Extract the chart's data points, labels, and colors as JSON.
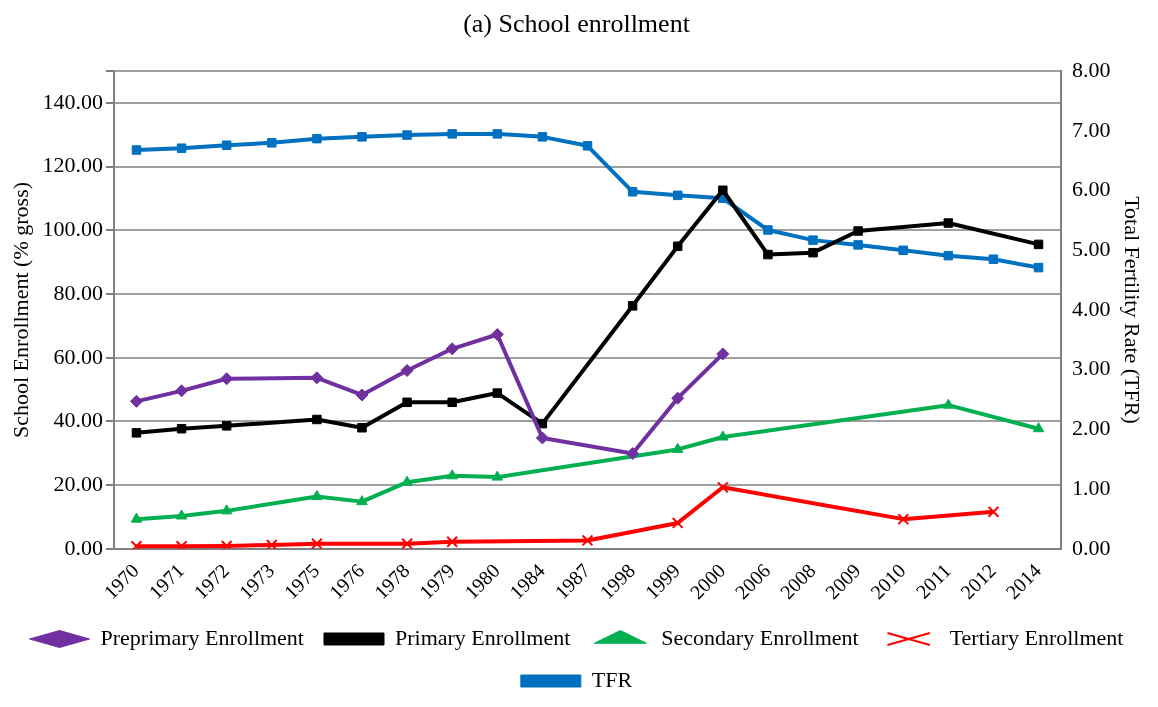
{
  "chart_data": {
    "type": "line",
    "title": "(a) School enrollment",
    "ylabel": "School Enrollment (% gross)",
    "y2label": "Total Fertility Rate (TFR)",
    "categories": [
      "1970",
      "1971",
      "1972",
      "1973",
      "1975",
      "1976",
      "1978",
      "1979",
      "1980",
      "1984",
      "1987",
      "1998",
      "1999",
      "2000",
      "2006",
      "2008",
      "2009",
      "2010",
      "2011",
      "2012",
      "2014"
    ],
    "series": [
      {
        "name": "Preprimary Enrollment",
        "color": "#7030a0",
        "marker": "diamond",
        "values": [
          46.3,
          49.6,
          53.4,
          null,
          53.7,
          48.3,
          56,
          62.8,
          67.3,
          34.8,
          null,
          29.9,
          47.3,
          61.2,
          null,
          null,
          null,
          null,
          null,
          null,
          null
        ]
      },
      {
        "name": "Primary Enrollment",
        "color": "#000000",
        "marker": "square",
        "values": [
          36.4,
          37.7,
          38.6,
          null,
          40.6,
          38,
          46,
          46,
          48.9,
          39.3,
          null,
          76.3,
          95,
          112.6,
          92.4,
          93,
          99.8,
          null,
          102.3,
          null,
          95.6
        ]
      },
      {
        "name": "Secondary Enrollment",
        "color": "#00b050",
        "marker": "triangle",
        "values": [
          9.3,
          10.3,
          11.9,
          null,
          16.4,
          14.8,
          20.9,
          22.9,
          22.5,
          null,
          null,
          null,
          31.2,
          35.1,
          null,
          null,
          null,
          null,
          45.1,
          null,
          37.7
        ]
      },
      {
        "name": "Tertiary Enrollment",
        "color": "#ff0000",
        "marker": "cross",
        "values": [
          0.8,
          0.8,
          0.9,
          1.2,
          1.6,
          null,
          1.6,
          2.2,
          null,
          null,
          2.6,
          null,
          8.1,
          19.3,
          null,
          null,
          null,
          9.3,
          null,
          11.6,
          null
        ]
      },
      {
        "name": "TFR",
        "color": "#0070c0",
        "marker": "square",
        "axis": "y2",
        "values": [
          6.68,
          6.71,
          6.76,
          6.8,
          6.87,
          6.9,
          6.93,
          6.95,
          6.95,
          6.9,
          6.75,
          5.98,
          5.92,
          5.87,
          5.34,
          5.17,
          5.09,
          5,
          4.91,
          4.85,
          4.71
        ]
      }
    ],
    "ylim": [
      0,
      150
    ],
    "yticks": [
      {
        "value": 0,
        "label": "0.00"
      },
      {
        "value": 20,
        "label": "20.00"
      },
      {
        "value": 40,
        "label": "40.00"
      },
      {
        "value": 60,
        "label": "60.00"
      },
      {
        "value": 80,
        "label": "80.00"
      },
      {
        "value": 100,
        "label": "100.00"
      },
      {
        "value": 120,
        "label": "120.00"
      },
      {
        "value": 140,
        "label": "140.00"
      },
      {
        "value": 150,
        "label": null
      }
    ],
    "y2lim": [
      0,
      8
    ],
    "y2ticks": [
      {
        "value": 0,
        "label": "0.00"
      },
      {
        "value": 1,
        "label": "1.00"
      },
      {
        "value": 2,
        "label": "2.00"
      },
      {
        "value": 3,
        "label": "3.00"
      },
      {
        "value": 4,
        "label": "4.00"
      },
      {
        "value": 5,
        "label": "5.00"
      },
      {
        "value": 6,
        "label": "6.00"
      },
      {
        "value": 7,
        "label": "7.00"
      },
      {
        "value": 8,
        "label": "8.00"
      }
    ],
    "grid": "y",
    "legend": "bottom",
    "line_style": "solid"
  }
}
